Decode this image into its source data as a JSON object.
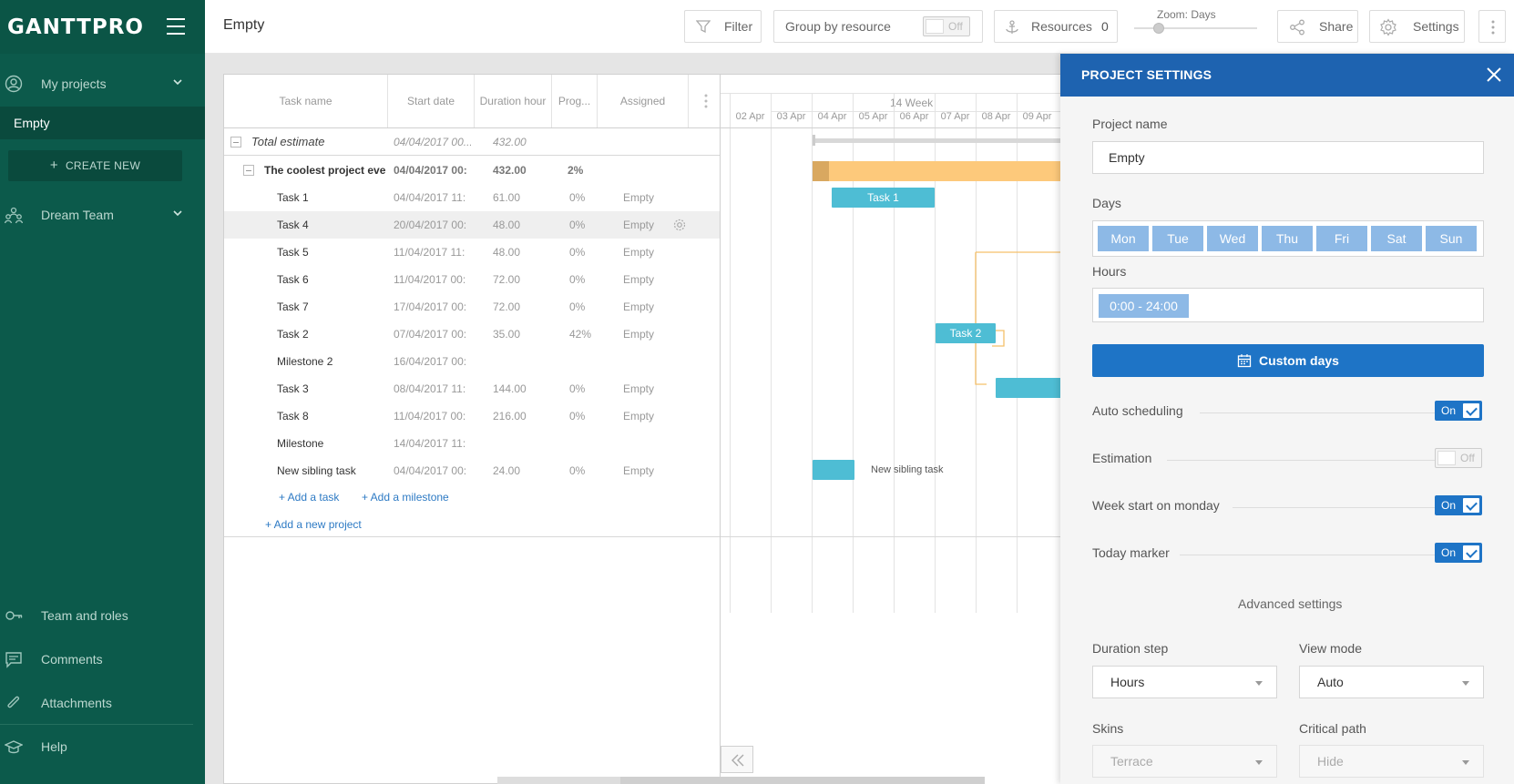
{
  "sidebar": {
    "logo": "GANTTPRO",
    "my_projects": "My projects",
    "active_project": "Empty",
    "create_new": "CREATE NEW",
    "team": "Dream Team",
    "bottom": {
      "team_roles": "Team and roles",
      "comments": "Comments",
      "attachments": "Attachments",
      "help": "Help"
    }
  },
  "header": {
    "title": "Empty",
    "filter": "Filter",
    "group_by": "Group by resource",
    "group_toggle": "Off",
    "resources": "Resources",
    "resources_count": "0",
    "zoom_label": "Zoom: Days",
    "share": "Share",
    "settings": "Settings"
  },
  "grid": {
    "columns": [
      "Task name",
      "Start date",
      "Duration hour",
      "Prog...",
      "Assigned"
    ],
    "total": {
      "name": "Total estimate",
      "start": "04/04/2017 00...",
      "duration": "432.00"
    },
    "project": {
      "name": "The coolest project ever",
      "start": "04/04/2017 00:",
      "duration": "432.00",
      "progress": "2%"
    },
    "rows": [
      {
        "name": "Task 1",
        "start": "04/04/2017 11:",
        "duration": "61.00",
        "progress": "0%",
        "assigned": "Empty"
      },
      {
        "name": "Task 4",
        "start": "20/04/2017 00:",
        "duration": "48.00",
        "progress": "0%",
        "assigned": "Empty"
      },
      {
        "name": "Task 5",
        "start": "11/04/2017 11:",
        "duration": "48.00",
        "progress": "0%",
        "assigned": "Empty"
      },
      {
        "name": "Task 6",
        "start": "11/04/2017 00:",
        "duration": "72.00",
        "progress": "0%",
        "assigned": "Empty"
      },
      {
        "name": "Task 7",
        "start": "17/04/2017 00:",
        "duration": "72.00",
        "progress": "0%",
        "assigned": "Empty"
      },
      {
        "name": "Task 2",
        "start": "07/04/2017 00:",
        "duration": "35.00",
        "progress": "42%",
        "assigned": "Empty"
      },
      {
        "name": "Milestone 2",
        "start": "16/04/2017 00:",
        "duration": "",
        "progress": "",
        "assigned": ""
      },
      {
        "name": "Task 3",
        "start": "08/04/2017 11:",
        "duration": "144.00",
        "progress": "0%",
        "assigned": "Empty"
      },
      {
        "name": "Task 8",
        "start": "11/04/2017 00:",
        "duration": "216.00",
        "progress": "0%",
        "assigned": "Empty"
      },
      {
        "name": "Milestone",
        "start": "14/04/2017 11:",
        "duration": "",
        "progress": "",
        "assigned": ""
      },
      {
        "name": "New sibling task",
        "start": "04/04/2017 00:",
        "duration": "24.00",
        "progress": "0%",
        "assigned": "Empty"
      }
    ],
    "add_task": "+ Add a task",
    "add_milestone": "+ Add a milestone",
    "add_project": "+ Add a new project"
  },
  "timeline": {
    "week": "14 Week",
    "days": [
      "02 Apr",
      "03 Apr",
      "04 Apr",
      "05 Apr",
      "06 Apr",
      "07 Apr",
      "08 Apr",
      "09 Apr"
    ],
    "bars": {
      "task1": "Task 1",
      "task2": "Task 2",
      "sibling": "New sibling task"
    }
  },
  "panel": {
    "title": "PROJECT SETTINGS",
    "project_name_label": "Project name",
    "project_name_value": "Empty",
    "days_label": "Days",
    "days": [
      "Mon",
      "Tue",
      "Wed",
      "Thu",
      "Fri",
      "Sat",
      "Sun"
    ],
    "hours_label": "Hours",
    "hours_value": "0:00 - 24:00",
    "custom_days": "Custom days",
    "settings": [
      {
        "label": "Auto scheduling",
        "state": "On"
      },
      {
        "label": "Estimation",
        "state": "Off"
      },
      {
        "label": "Week start on monday",
        "state": "On"
      },
      {
        "label": "Today marker",
        "state": "On"
      }
    ],
    "advanced": "Advanced settings",
    "duration_step_label": "Duration step",
    "duration_step_value": "Hours",
    "view_mode_label": "View mode",
    "view_mode_value": "Auto",
    "skins_label": "Skins",
    "skins_value": "Terrace",
    "critical_path_label": "Critical path",
    "critical_path_value": "Hide"
  },
  "colors": {
    "sidebar": "#0c5a4b",
    "accent": "#1e74c6",
    "bar": "#4ebdd4",
    "project_bar": "#fdc97b"
  }
}
